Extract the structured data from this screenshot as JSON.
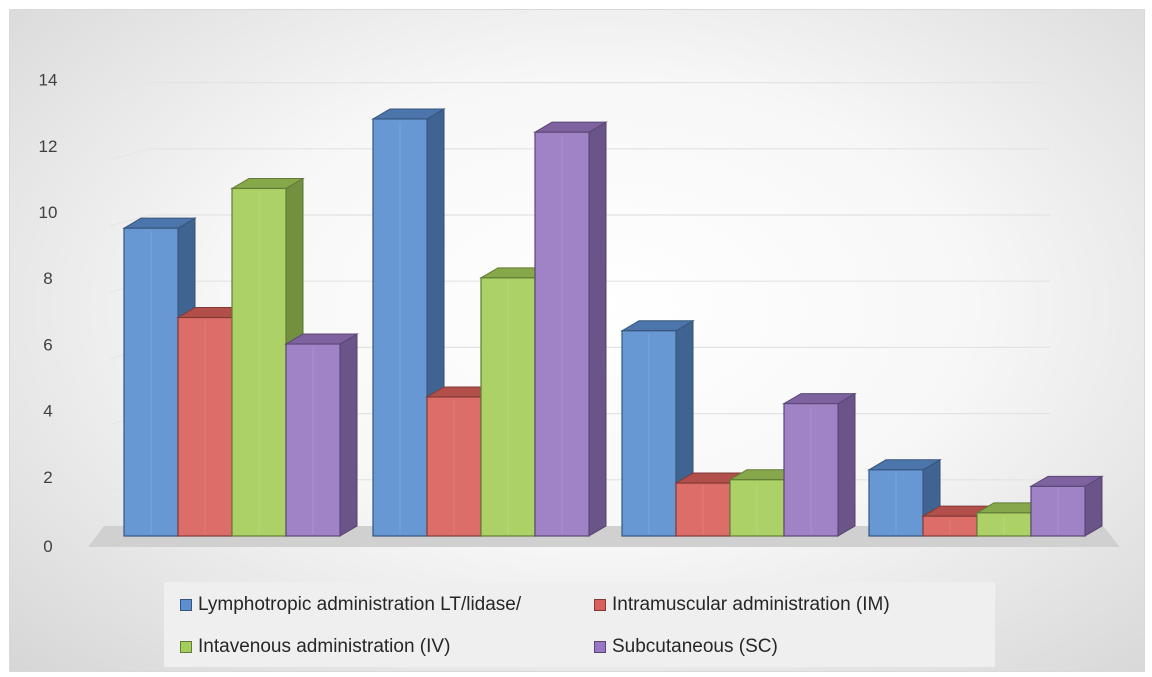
{
  "chart_data": {
    "type": "bar",
    "title": "",
    "xlabel": "",
    "ylabel": "",
    "ylim": [
      0,
      14
    ],
    "yticks": [
      "0",
      "2",
      "4",
      "6",
      "8",
      "10",
      "12",
      "14"
    ],
    "categories": [
      "",
      "",
      "",
      ""
    ],
    "grid": true,
    "three_d": true,
    "legend_position": "bottom",
    "series": [
      {
        "name": "Lymphotropic administration LT/lidase/",
        "color": "#5b8fd0",
        "values": [
          9.3,
          12.6,
          6.2,
          2.0
        ]
      },
      {
        "name": "Intramuscular administration (IM)",
        "color": "#d9605c",
        "values": [
          6.6,
          4.2,
          1.6,
          0.6
        ]
      },
      {
        "name": "Intavenous administration (IV)",
        "color": "#a4cd5a",
        "values": [
          10.5,
          7.8,
          1.7,
          0.7
        ]
      },
      {
        "name": "Subcutaneous (SC)",
        "color": "#9878c2",
        "values": [
          5.8,
          12.2,
          4.0,
          1.5
        ]
      }
    ]
  }
}
